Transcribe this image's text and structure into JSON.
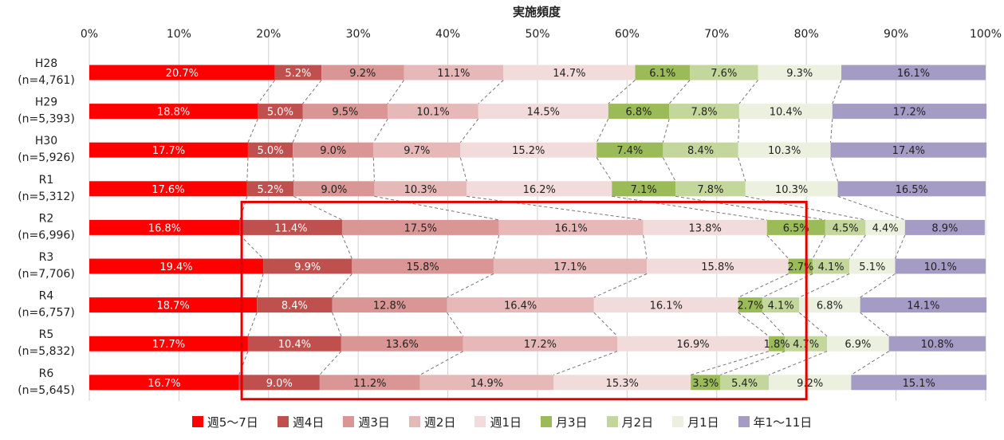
{
  "chart_data": {
    "type": "bar",
    "orientation": "horizontal",
    "stacked": true,
    "title": "実施頻度",
    "xlim": [
      0,
      100
    ],
    "x_ticks": [
      "0%",
      "10%",
      "20%",
      "30%",
      "40%",
      "50%",
      "60%",
      "70%",
      "80%",
      "90%",
      "100%"
    ],
    "categories": [
      [
        "H28",
        "(n=4,761)"
      ],
      [
        "H29",
        "(n=5,393)"
      ],
      [
        "H30",
        "(n=5,926)"
      ],
      [
        "R1",
        "(n=5,312)"
      ],
      [
        "R2",
        "(n=6,996)"
      ],
      [
        "R3",
        "(n=7,706)"
      ],
      [
        "R4",
        "(n=6,757)"
      ],
      [
        "R5",
        "(n=5,832)"
      ],
      [
        "R6",
        "(n=5,645)"
      ]
    ],
    "series": [
      {
        "name": "週5～7日",
        "color": "#ff0000",
        "label_color": "#ffffff",
        "values": [
          20.7,
          18.8,
          17.7,
          17.6,
          16.8,
          19.4,
          18.7,
          17.7,
          16.7
        ]
      },
      {
        "name": "週4日",
        "color": "#c0504d",
        "label_color": "#ffffff",
        "values": [
          5.2,
          5.0,
          5.0,
          5.2,
          11.4,
          9.9,
          8.4,
          10.4,
          9.0
        ]
      },
      {
        "name": "週3日",
        "color": "#d99694",
        "label_color": "#222222",
        "values": [
          9.2,
          9.5,
          9.0,
          9.0,
          17.5,
          15.8,
          12.8,
          13.6,
          11.2
        ]
      },
      {
        "name": "週2日",
        "color": "#e6b9b8",
        "label_color": "#222222",
        "values": [
          11.1,
          10.1,
          9.7,
          10.3,
          16.1,
          17.1,
          16.4,
          17.2,
          14.9
        ]
      },
      {
        "name": "週1日",
        "color": "#f2dcdb",
        "label_color": "#222222",
        "values": [
          14.7,
          14.5,
          15.2,
          16.2,
          13.8,
          15.8,
          16.1,
          16.9,
          15.3
        ]
      },
      {
        "name": "月3日",
        "color": "#9bbb59",
        "label_color": "#222222",
        "values": [
          6.1,
          6.8,
          7.4,
          7.1,
          6.5,
          2.7,
          2.7,
          1.8,
          3.3
        ]
      },
      {
        "name": "月2日",
        "color": "#c3d69b",
        "label_color": "#222222",
        "values": [
          7.6,
          7.8,
          8.4,
          7.8,
          4.5,
          4.1,
          4.1,
          4.7,
          5.4
        ]
      },
      {
        "name": "月1日",
        "color": "#ebf1de",
        "label_color": "#222222",
        "values": [
          9.3,
          10.4,
          10.3,
          10.3,
          4.4,
          5.1,
          6.8,
          6.9,
          9.2
        ]
      },
      {
        "name": "年1～11日",
        "color": "#a59cc6",
        "label_color": "#222222",
        "values": [
          16.1,
          17.2,
          17.4,
          16.5,
          8.9,
          10.1,
          14.1,
          10.8,
          15.1
        ]
      }
    ],
    "value_label_suffix": "%",
    "connector_lines": "dashed",
    "highlight_box": {
      "color": "#e00000",
      "x_range": [
        17,
        80
      ],
      "category_range": [
        "R2",
        "R6"
      ]
    },
    "grid": true,
    "legend_position": "bottom"
  }
}
